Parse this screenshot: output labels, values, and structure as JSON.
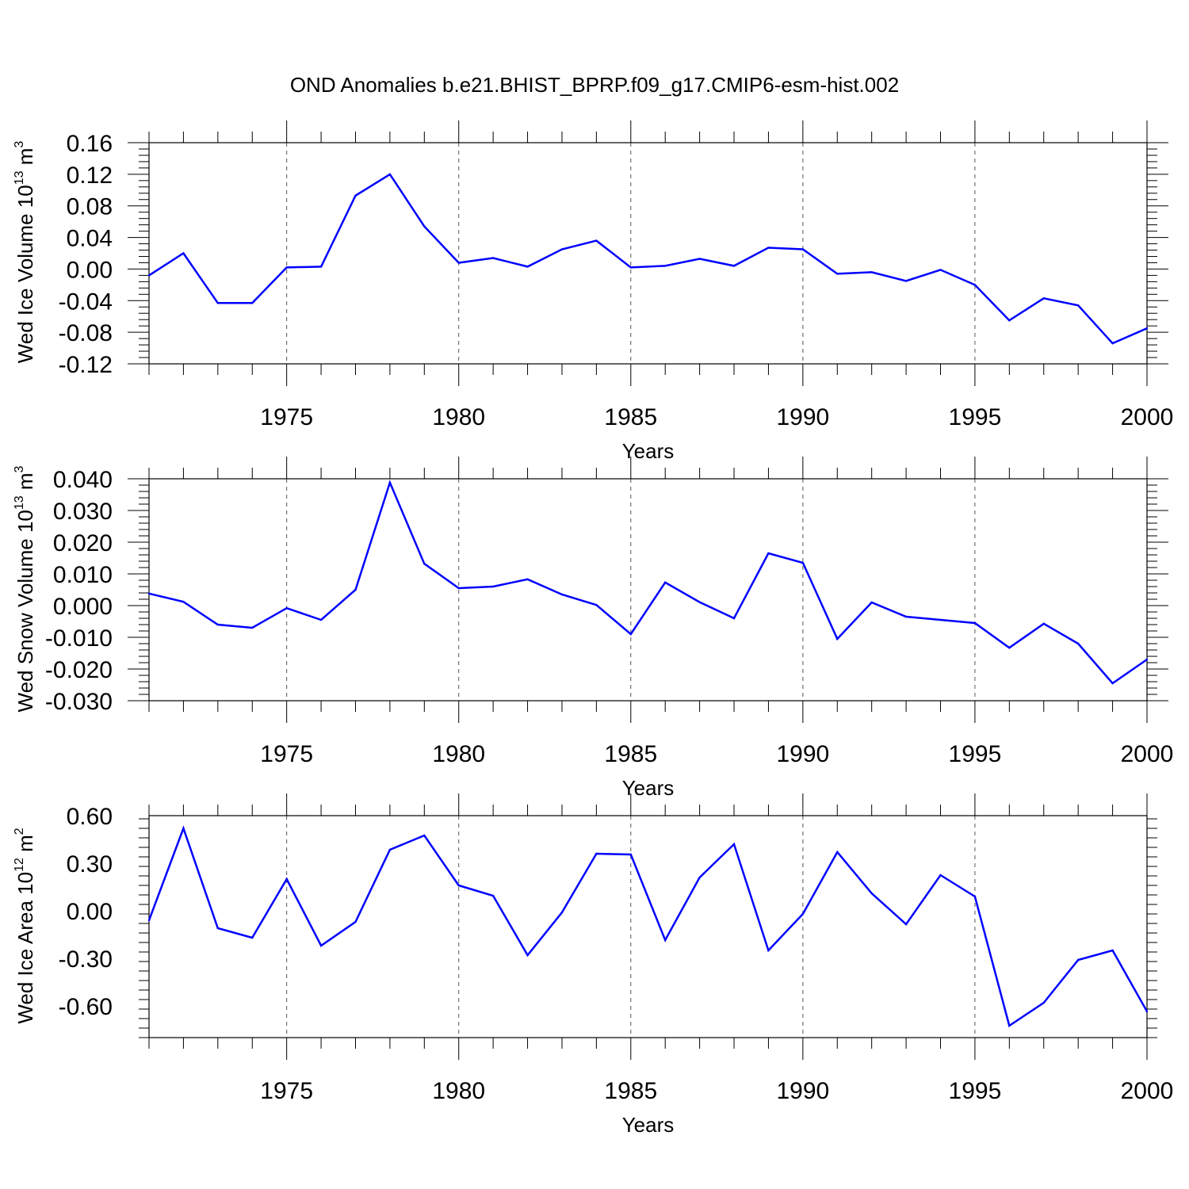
{
  "chart_data": {
    "title": "OND Anomalies b.e21.BHIST_BPRP.f09_g17.CMIP6-esm-hist.002",
    "type": "line",
    "line_color": "#0000ff",
    "grid": "vertical dashed at major x ticks",
    "x": [
      1971,
      1972,
      1973,
      1974,
      1975,
      1976,
      1977,
      1978,
      1979,
      1980,
      1981,
      1982,
      1983,
      1984,
      1985,
      1986,
      1987,
      1988,
      1989,
      1990,
      1991,
      1992,
      1993,
      1994,
      1995,
      1996,
      1997,
      1998,
      1999,
      2000
    ],
    "panels": [
      {
        "ylabel": "Wed Ice Volume 10",
        "ylabel_exp": "13",
        "ylabel_unit": " m",
        "ylabel_unit_exp": "3",
        "xlabel": "Years",
        "xlim": [
          1971,
          2000
        ],
        "ylim": [
          -0.12,
          0.16
        ],
        "yticks": [
          -0.12,
          -0.08,
          -0.04,
          0.0,
          0.04,
          0.08,
          0.12,
          0.16
        ],
        "ytick_labels": [
          "-0.12",
          "-0.08",
          "-0.04",
          "0.00",
          "0.04",
          "0.08",
          "0.12",
          "0.16"
        ],
        "xticks": [
          1975,
          1980,
          1985,
          1990,
          1995,
          2000
        ],
        "xtick_labels": [
          "1975",
          "1980",
          "1985",
          "1990",
          "1995",
          "2000"
        ],
        "values": [
          -0.008,
          0.02,
          -0.043,
          -0.043,
          0.002,
          0.003,
          0.093,
          0.12,
          0.054,
          0.008,
          0.014,
          0.003,
          0.025,
          0.036,
          0.002,
          0.004,
          0.013,
          0.004,
          0.027,
          0.025,
          -0.006,
          -0.004,
          -0.015,
          -0.001,
          -0.02,
          -0.065,
          -0.037,
          -0.046,
          -0.094,
          -0.075
        ]
      },
      {
        "ylabel": "Wed Snow Volume 10",
        "ylabel_exp": "13",
        "ylabel_unit": " m",
        "ylabel_unit_exp": "3",
        "xlabel": "Years",
        "xlim": [
          1971,
          2000
        ],
        "ylim": [
          -0.03,
          0.04
        ],
        "yticks": [
          -0.03,
          -0.02,
          -0.01,
          0.0,
          0.01,
          0.02,
          0.03,
          0.04
        ],
        "ytick_labels": [
          "-0.030",
          "-0.020",
          "-0.010",
          "0.000",
          "0.010",
          "0.020",
          "0.030",
          "0.040"
        ],
        "xticks": [
          1975,
          1980,
          1985,
          1990,
          1995,
          2000
        ],
        "xtick_labels": [
          "1975",
          "1980",
          "1985",
          "1990",
          "1995",
          "2000"
        ],
        "values": [
          0.0038,
          0.0012,
          -0.006,
          -0.007,
          -0.0008,
          -0.0045,
          0.005,
          0.0388,
          0.0132,
          0.0055,
          0.006,
          0.0083,
          0.0035,
          0.0002,
          -0.009,
          0.0073,
          0.0011,
          -0.004,
          0.0165,
          0.0135,
          -0.0105,
          0.001,
          -0.0035,
          -0.0045,
          -0.0055,
          -0.0133,
          -0.0057,
          -0.012,
          -0.0245,
          -0.017
        ]
      },
      {
        "ylabel": "Wed Ice Area 10",
        "ylabel_exp": "12",
        "ylabel_unit": " m",
        "ylabel_unit_exp": "2",
        "xlabel": "Years",
        "xlim": [
          1971,
          2000
        ],
        "ylim": [
          -0.8,
          0.6
        ],
        "yticks": [
          -0.6,
          -0.3,
          0.0,
          0.3,
          0.6
        ],
        "ytick_labels": [
          "-0.60",
          "-0.30",
          "0.00",
          "0.30",
          "0.60"
        ],
        "xticks": [
          1975,
          1980,
          1985,
          1990,
          1995,
          2000
        ],
        "xtick_labels": [
          "1975",
          "1980",
          "1985",
          "1990",
          "1995",
          "2000"
        ],
        "values": [
          -0.06,
          0.52,
          -0.11,
          -0.17,
          0.2,
          -0.22,
          -0.07,
          0.385,
          0.475,
          0.16,
          0.095,
          -0.28,
          -0.01,
          0.36,
          0.355,
          -0.185,
          0.21,
          0.42,
          -0.25,
          -0.02,
          0.37,
          0.11,
          -0.085,
          0.225,
          0.09,
          -0.725,
          -0.58,
          -0.31,
          -0.25,
          -0.635
        ]
      }
    ]
  }
}
